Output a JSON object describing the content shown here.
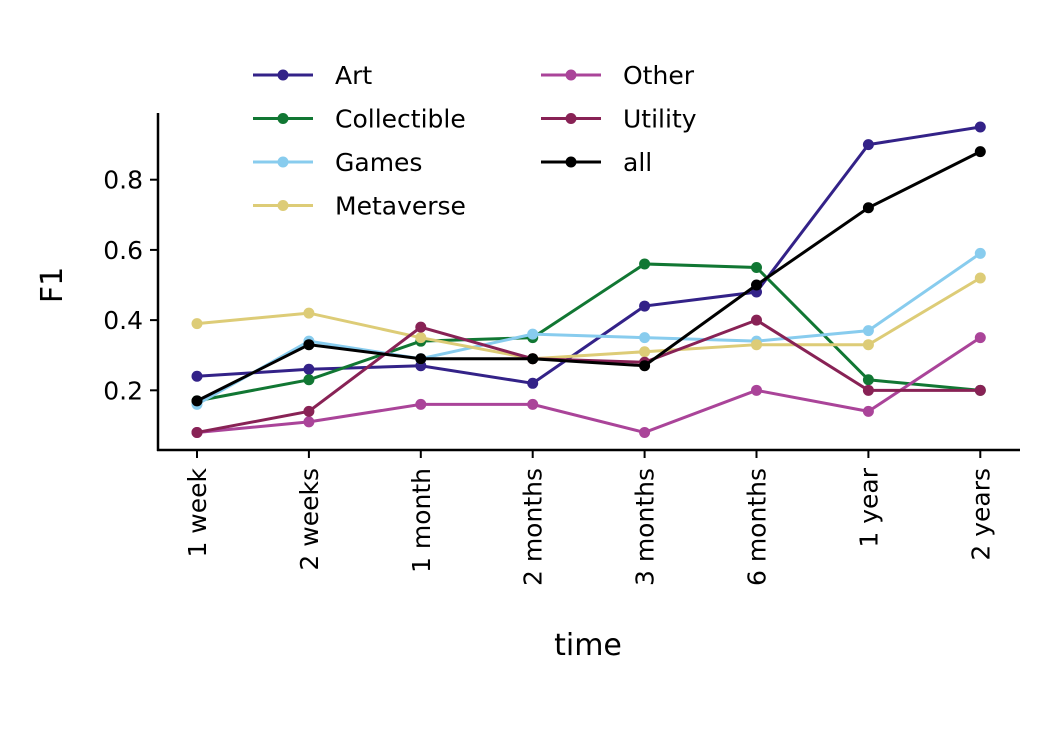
{
  "chart_data": {
    "type": "line",
    "x_label": "time",
    "y_label": "F1",
    "categories": [
      "1 week",
      "2 weeks",
      "1 month",
      "2 months",
      "3 months",
      "6 months",
      "1 year",
      "2 years"
    ],
    "ylim": [
      0.03,
      0.99
    ],
    "yticks": [
      0.2,
      0.4,
      0.6,
      0.8
    ],
    "series": [
      {
        "name": "Art",
        "color": "#332288",
        "values": [
          0.24,
          0.26,
          0.27,
          0.22,
          0.44,
          0.48,
          0.9,
          0.95
        ]
      },
      {
        "name": "Collectible",
        "color": "#117733",
        "values": [
          0.17,
          0.23,
          0.34,
          0.35,
          0.56,
          0.55,
          0.23,
          0.2
        ]
      },
      {
        "name": "Games",
        "color": "#88ccee",
        "values": [
          0.16,
          0.34,
          0.29,
          0.36,
          0.35,
          0.34,
          0.37,
          0.59
        ]
      },
      {
        "name": "Metaverse",
        "color": "#ddcc77",
        "values": [
          0.39,
          0.42,
          0.35,
          0.29,
          0.31,
          0.33,
          0.33,
          0.52
        ]
      },
      {
        "name": "Other",
        "color": "#aa4499",
        "values": [
          0.08,
          0.11,
          0.16,
          0.16,
          0.08,
          0.2,
          0.14,
          0.35
        ]
      },
      {
        "name": "Utility",
        "color": "#882255",
        "values": [
          0.08,
          0.14,
          0.38,
          0.29,
          0.28,
          0.4,
          0.2,
          0.2
        ]
      },
      {
        "name": "all",
        "color": "#000000",
        "values": [
          0.17,
          0.33,
          0.29,
          0.29,
          0.27,
          0.5,
          0.72,
          0.88
        ]
      }
    ]
  }
}
